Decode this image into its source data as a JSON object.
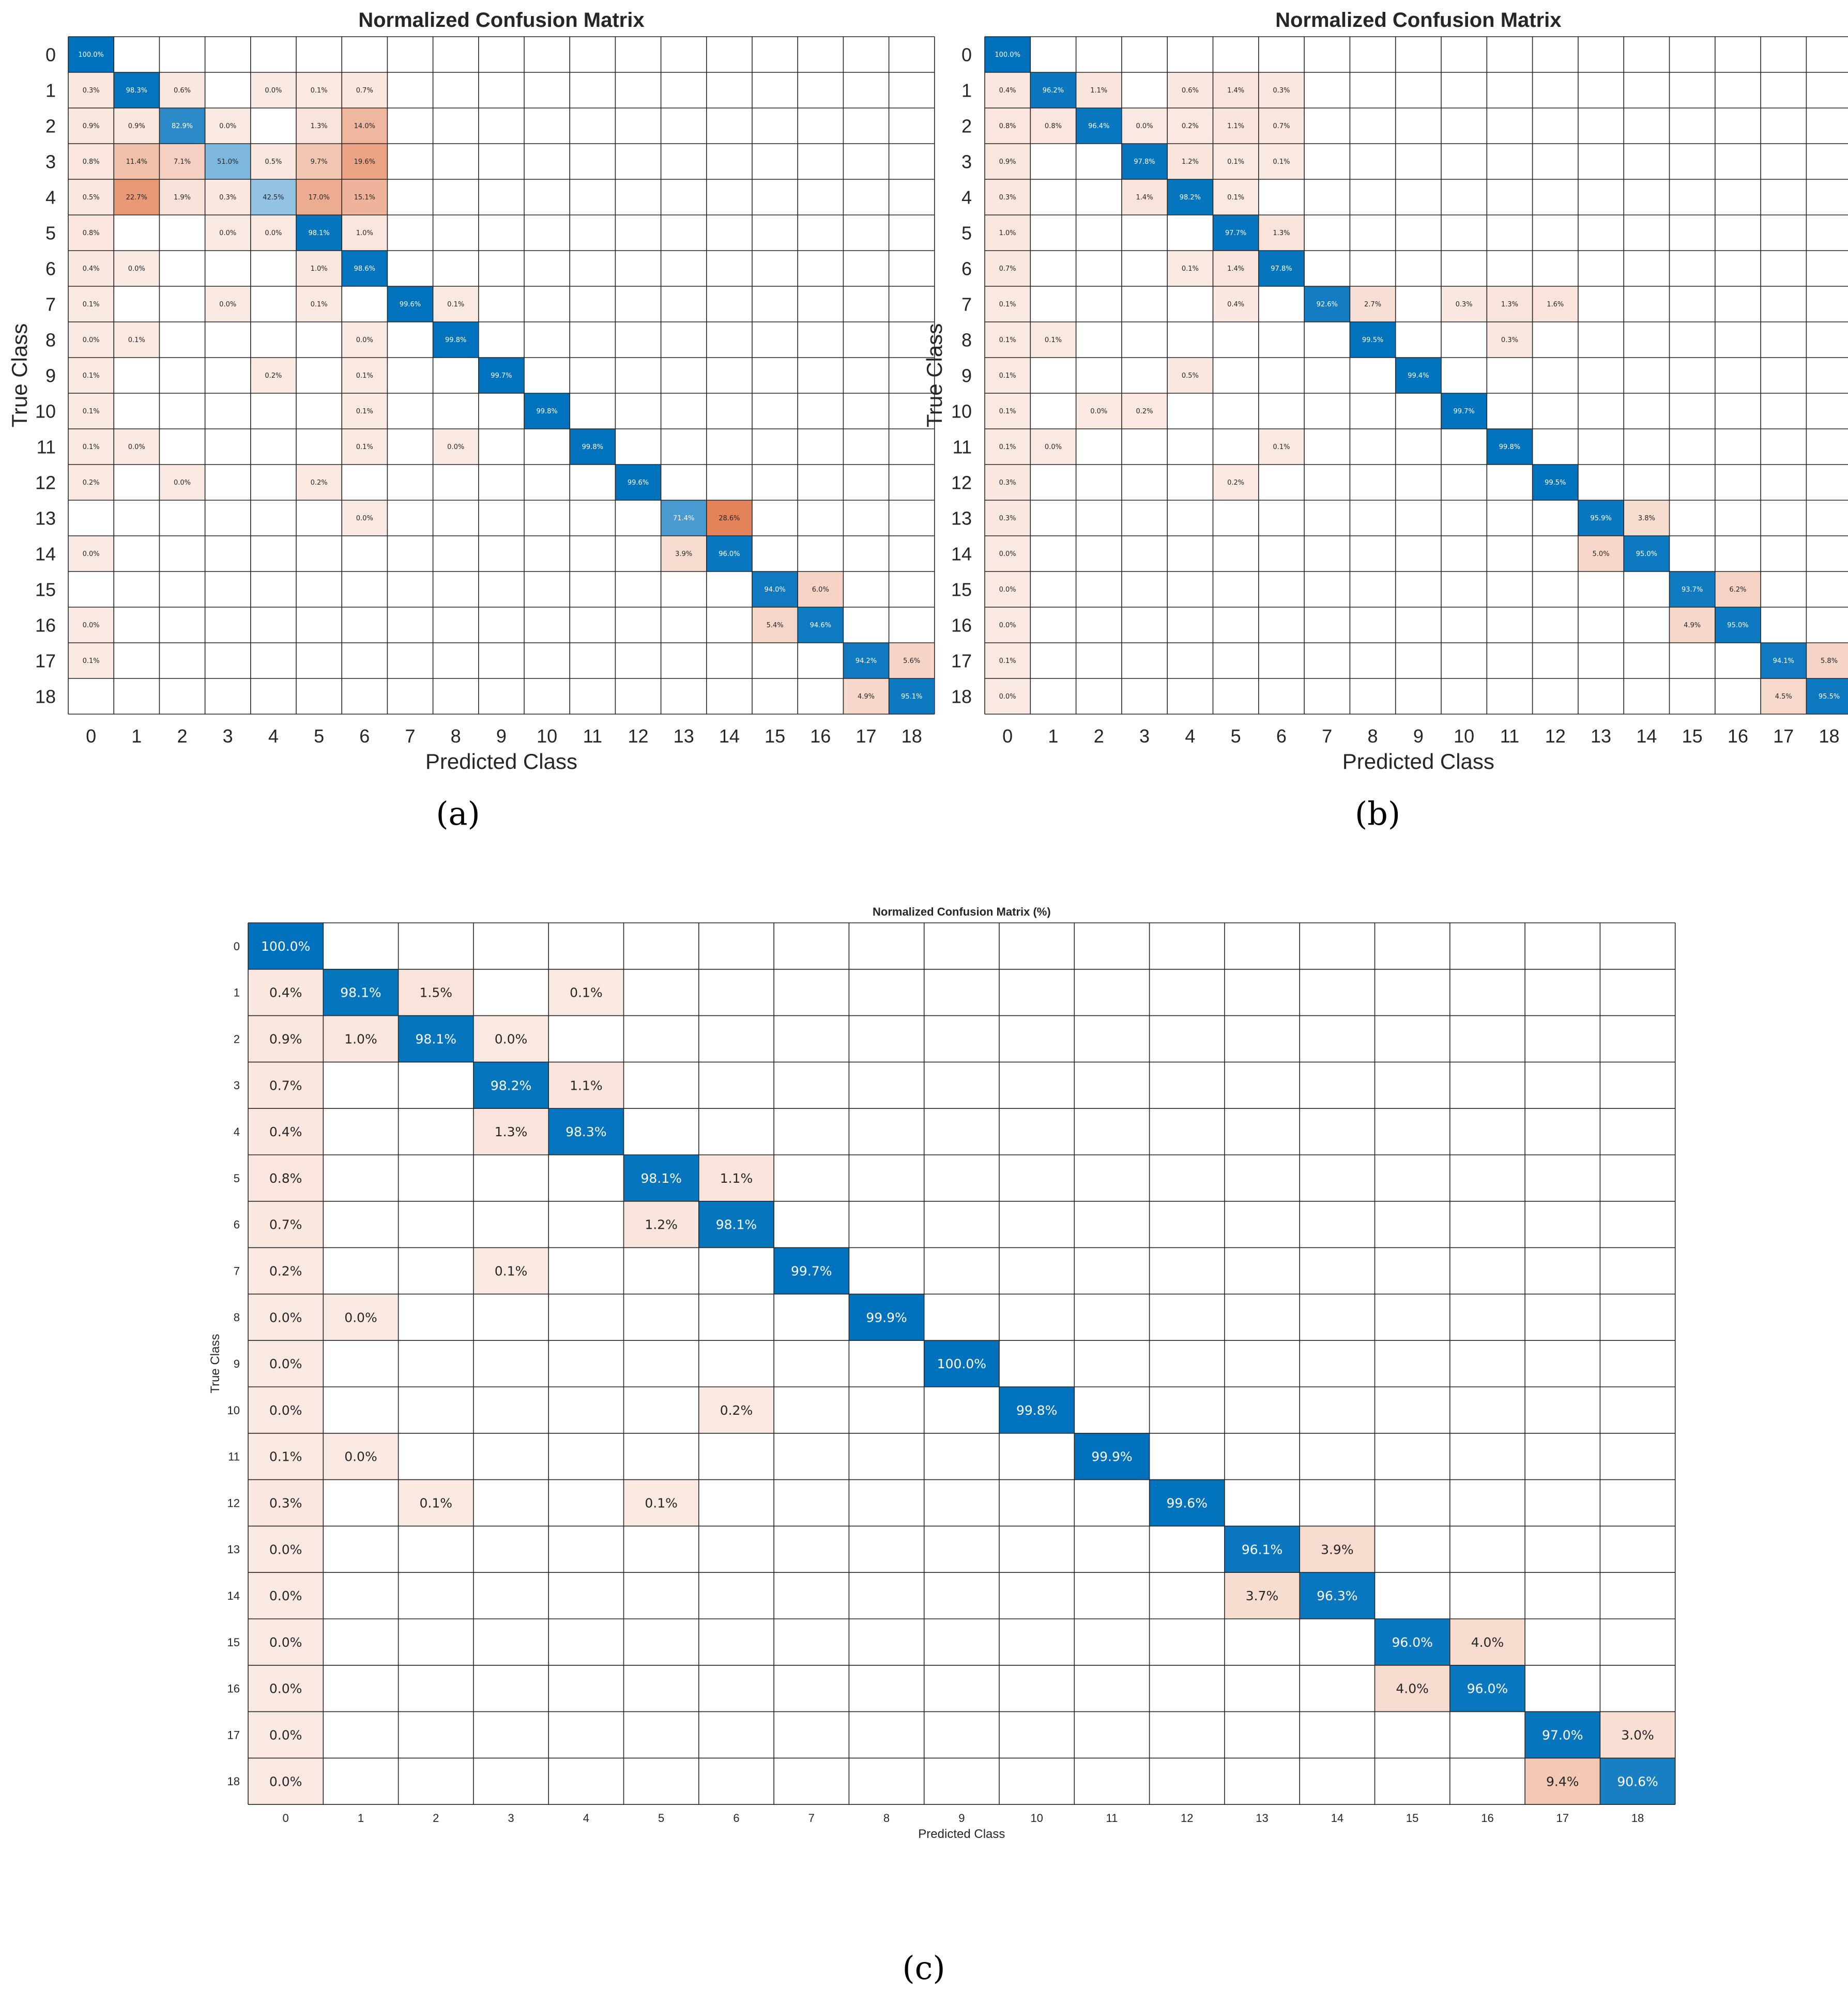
{
  "chart_data": [
    {
      "type": "heatmap",
      "panel": "a",
      "title": "Normalized Confusion Matrix",
      "xlabel": "Predicted Class",
      "ylabel": "True Class",
      "caption": "(a)",
      "classes": [
        "0",
        "1",
        "2",
        "3",
        "4",
        "5",
        "6",
        "7",
        "8",
        "9",
        "10",
        "11",
        "12",
        "13",
        "14",
        "15",
        "16",
        "17",
        "18"
      ],
      "cells": [
        {
          "t": 0,
          "p": 0,
          "v": 100.0
        },
        {
          "t": 1,
          "p": 0,
          "v": 0.3
        },
        {
          "t": 1,
          "p": 1,
          "v": 98.3
        },
        {
          "t": 1,
          "p": 2,
          "v": 0.6
        },
        {
          "t": 1,
          "p": 4,
          "v": 0.0
        },
        {
          "t": 1,
          "p": 5,
          "v": 0.1
        },
        {
          "t": 1,
          "p": 6,
          "v": 0.7
        },
        {
          "t": 2,
          "p": 0,
          "v": 0.9
        },
        {
          "t": 2,
          "p": 1,
          "v": 0.9
        },
        {
          "t": 2,
          "p": 2,
          "v": 82.9
        },
        {
          "t": 2,
          "p": 3,
          "v": 0.0
        },
        {
          "t": 2,
          "p": 5,
          "v": 1.3
        },
        {
          "t": 2,
          "p": 6,
          "v": 14.0
        },
        {
          "t": 3,
          "p": 0,
          "v": 0.8
        },
        {
          "t": 3,
          "p": 1,
          "v": 11.4
        },
        {
          "t": 3,
          "p": 2,
          "v": 7.1
        },
        {
          "t": 3,
          "p": 3,
          "v": 51.0
        },
        {
          "t": 3,
          "p": 4,
          "v": 0.5
        },
        {
          "t": 3,
          "p": 5,
          "v": 9.7
        },
        {
          "t": 3,
          "p": 6,
          "v": 19.6
        },
        {
          "t": 4,
          "p": 0,
          "v": 0.5
        },
        {
          "t": 4,
          "p": 1,
          "v": 22.7
        },
        {
          "t": 4,
          "p": 2,
          "v": 1.9
        },
        {
          "t": 4,
          "p": 3,
          "v": 0.3
        },
        {
          "t": 4,
          "p": 4,
          "v": 42.5
        },
        {
          "t": 4,
          "p": 5,
          "v": 17.0
        },
        {
          "t": 4,
          "p": 6,
          "v": 15.1
        },
        {
          "t": 5,
          "p": 0,
          "v": 0.8
        },
        {
          "t": 5,
          "p": 3,
          "v": 0.0
        },
        {
          "t": 5,
          "p": 4,
          "v": 0.0
        },
        {
          "t": 5,
          "p": 5,
          "v": 98.1
        },
        {
          "t": 5,
          "p": 6,
          "v": 1.0
        },
        {
          "t": 6,
          "p": 0,
          "v": 0.4
        },
        {
          "t": 6,
          "p": 1,
          "v": 0.0
        },
        {
          "t": 6,
          "p": 5,
          "v": 1.0
        },
        {
          "t": 6,
          "p": 6,
          "v": 98.6
        },
        {
          "t": 7,
          "p": 0,
          "v": 0.1
        },
        {
          "t": 7,
          "p": 3,
          "v": 0.0
        },
        {
          "t": 7,
          "p": 5,
          "v": 0.1
        },
        {
          "t": 7,
          "p": 7,
          "v": 99.6
        },
        {
          "t": 7,
          "p": 8,
          "v": 0.1
        },
        {
          "t": 8,
          "p": 0,
          "v": 0.0
        },
        {
          "t": 8,
          "p": 1,
          "v": 0.1
        },
        {
          "t": 8,
          "p": 6,
          "v": 0.0
        },
        {
          "t": 8,
          "p": 8,
          "v": 99.8
        },
        {
          "t": 9,
          "p": 0,
          "v": 0.1
        },
        {
          "t": 9,
          "p": 4,
          "v": 0.2
        },
        {
          "t": 9,
          "p": 6,
          "v": 0.1
        },
        {
          "t": 9,
          "p": 9,
          "v": 99.7
        },
        {
          "t": 10,
          "p": 0,
          "v": 0.1
        },
        {
          "t": 10,
          "p": 6,
          "v": 0.1
        },
        {
          "t": 10,
          "p": 10,
          "v": 99.8
        },
        {
          "t": 11,
          "p": 0,
          "v": 0.1
        },
        {
          "t": 11,
          "p": 1,
          "v": 0.0
        },
        {
          "t": 11,
          "p": 6,
          "v": 0.1
        },
        {
          "t": 11,
          "p": 8,
          "v": 0.0
        },
        {
          "t": 11,
          "p": 11,
          "v": 99.8
        },
        {
          "t": 12,
          "p": 0,
          "v": 0.2
        },
        {
          "t": 12,
          "p": 2,
          "v": 0.0
        },
        {
          "t": 12,
          "p": 5,
          "v": 0.2
        },
        {
          "t": 12,
          "p": 12,
          "v": 99.6
        },
        {
          "t": 13,
          "p": 6,
          "v": 0.0
        },
        {
          "t": 13,
          "p": 13,
          "v": 71.4
        },
        {
          "t": 13,
          "p": 14,
          "v": 28.6
        },
        {
          "t": 14,
          "p": 0,
          "v": 0.0
        },
        {
          "t": 14,
          "p": 13,
          "v": 3.9
        },
        {
          "t": 14,
          "p": 14,
          "v": 96.0
        },
        {
          "t": 15,
          "p": 15,
          "v": 94.0
        },
        {
          "t": 15,
          "p": 16,
          "v": 6.0
        },
        {
          "t": 16,
          "p": 0,
          "v": 0.0
        },
        {
          "t": 16,
          "p": 15,
          "v": 5.4
        },
        {
          "t": 16,
          "p": 16,
          "v": 94.6
        },
        {
          "t": 17,
          "p": 0,
          "v": 0.1
        },
        {
          "t": 17,
          "p": 17,
          "v": 94.2
        },
        {
          "t": 17,
          "p": 18,
          "v": 5.6
        },
        {
          "t": 18,
          "p": 17,
          "v": 4.9
        },
        {
          "t": 18,
          "p": 18,
          "v": 95.1
        }
      ]
    },
    {
      "type": "heatmap",
      "panel": "b",
      "title": "Normalized Confusion Matrix",
      "xlabel": "Predicted Class",
      "ylabel": "True Class",
      "caption": "(b)",
      "classes": [
        "0",
        "1",
        "2",
        "3",
        "4",
        "5",
        "6",
        "7",
        "8",
        "9",
        "10",
        "11",
        "12",
        "13",
        "14",
        "15",
        "16",
        "17",
        "18"
      ],
      "cells": [
        {
          "t": 0,
          "p": 0,
          "v": 100.0
        },
        {
          "t": 1,
          "p": 0,
          "v": 0.4
        },
        {
          "t": 1,
          "p": 1,
          "v": 96.2
        },
        {
          "t": 1,
          "p": 2,
          "v": 1.1
        },
        {
          "t": 1,
          "p": 4,
          "v": 0.6
        },
        {
          "t": 1,
          "p": 5,
          "v": 1.4
        },
        {
          "t": 1,
          "p": 6,
          "v": 0.3
        },
        {
          "t": 2,
          "p": 0,
          "v": 0.8
        },
        {
          "t": 2,
          "p": 1,
          "v": 0.8
        },
        {
          "t": 2,
          "p": 2,
          "v": 96.4
        },
        {
          "t": 2,
          "p": 3,
          "v": 0.0
        },
        {
          "t": 2,
          "p": 4,
          "v": 0.2
        },
        {
          "t": 2,
          "p": 5,
          "v": 1.1
        },
        {
          "t": 2,
          "p": 6,
          "v": 0.7
        },
        {
          "t": 3,
          "p": 0,
          "v": 0.9
        },
        {
          "t": 3,
          "p": 3,
          "v": 97.8
        },
        {
          "t": 3,
          "p": 4,
          "v": 1.2
        },
        {
          "t": 3,
          "p": 5,
          "v": 0.1
        },
        {
          "t": 3,
          "p": 6,
          "v": 0.1
        },
        {
          "t": 4,
          "p": 0,
          "v": 0.3
        },
        {
          "t": 4,
          "p": 3,
          "v": 1.4
        },
        {
          "t": 4,
          "p": 4,
          "v": 98.2
        },
        {
          "t": 4,
          "p": 5,
          "v": 0.1
        },
        {
          "t": 5,
          "p": 0,
          "v": 1.0
        },
        {
          "t": 5,
          "p": 5,
          "v": 97.7
        },
        {
          "t": 5,
          "p": 6,
          "v": 1.3
        },
        {
          "t": 6,
          "p": 0,
          "v": 0.7
        },
        {
          "t": 6,
          "p": 4,
          "v": 0.1
        },
        {
          "t": 6,
          "p": 5,
          "v": 1.4
        },
        {
          "t": 6,
          "p": 6,
          "v": 97.8
        },
        {
          "t": 7,
          "p": 0,
          "v": 0.1
        },
        {
          "t": 7,
          "p": 5,
          "v": 0.4
        },
        {
          "t": 7,
          "p": 7,
          "v": 92.6
        },
        {
          "t": 7,
          "p": 8,
          "v": 2.7
        },
        {
          "t": 7,
          "p": 10,
          "v": 0.3
        },
        {
          "t": 7,
          "p": 11,
          "v": 1.3
        },
        {
          "t": 7,
          "p": 12,
          "v": 1.6
        },
        {
          "t": 8,
          "p": 0,
          "v": 0.1
        },
        {
          "t": 8,
          "p": 1,
          "v": 0.1
        },
        {
          "t": 8,
          "p": 8,
          "v": 99.5
        },
        {
          "t": 8,
          "p": 11,
          "v": 0.3
        },
        {
          "t": 9,
          "p": 0,
          "v": 0.1
        },
        {
          "t": 9,
          "p": 4,
          "v": 0.5
        },
        {
          "t": 9,
          "p": 9,
          "v": 99.4
        },
        {
          "t": 10,
          "p": 0,
          "v": 0.1
        },
        {
          "t": 10,
          "p": 2,
          "v": 0.0
        },
        {
          "t": 10,
          "p": 3,
          "v": 0.2
        },
        {
          "t": 10,
          "p": 10,
          "v": 99.7
        },
        {
          "t": 11,
          "p": 0,
          "v": 0.1
        },
        {
          "t": 11,
          "p": 1,
          "v": 0.0
        },
        {
          "t": 11,
          "p": 6,
          "v": 0.1
        },
        {
          "t": 11,
          "p": 11,
          "v": 99.8
        },
        {
          "t": 12,
          "p": 0,
          "v": 0.3
        },
        {
          "t": 12,
          "p": 5,
          "v": 0.2
        },
        {
          "t": 12,
          "p": 12,
          "v": 99.5
        },
        {
          "t": 13,
          "p": 0,
          "v": 0.3
        },
        {
          "t": 13,
          "p": 13,
          "v": 95.9
        },
        {
          "t": 13,
          "p": 14,
          "v": 3.8
        },
        {
          "t": 14,
          "p": 0,
          "v": 0.0
        },
        {
          "t": 14,
          "p": 13,
          "v": 5.0
        },
        {
          "t": 14,
          "p": 14,
          "v": 95.0
        },
        {
          "t": 15,
          "p": 0,
          "v": 0.0
        },
        {
          "t": 15,
          "p": 15,
          "v": 93.7
        },
        {
          "t": 15,
          "p": 16,
          "v": 6.2
        },
        {
          "t": 16,
          "p": 0,
          "v": 0.0
        },
        {
          "t": 16,
          "p": 15,
          "v": 4.9
        },
        {
          "t": 16,
          "p": 16,
          "v": 95.0
        },
        {
          "t": 17,
          "p": 0,
          "v": 0.1
        },
        {
          "t": 17,
          "p": 17,
          "v": 94.1
        },
        {
          "t": 17,
          "p": 18,
          "v": 5.8
        },
        {
          "t": 18,
          "p": 0,
          "v": 0.0
        },
        {
          "t": 18,
          "p": 17,
          "v": 4.5
        },
        {
          "t": 18,
          "p": 18,
          "v": 95.5
        }
      ]
    },
    {
      "type": "heatmap",
      "panel": "c",
      "title": "Normalized Confusion Matrix (%)",
      "xlabel": "Predicted Class",
      "ylabel": "True Class",
      "caption": "(c)",
      "classes": [
        "0",
        "1",
        "2",
        "3",
        "4",
        "5",
        "6",
        "7",
        "8",
        "9",
        "10",
        "11",
        "12",
        "13",
        "14",
        "15",
        "16",
        "17",
        "18"
      ],
      "cells": [
        {
          "t": 0,
          "p": 0,
          "v": 100.0
        },
        {
          "t": 1,
          "p": 0,
          "v": 0.4
        },
        {
          "t": 1,
          "p": 1,
          "v": 98.1
        },
        {
          "t": 1,
          "p": 2,
          "v": 1.5
        },
        {
          "t": 1,
          "p": 4,
          "v": 0.1
        },
        {
          "t": 2,
          "p": 0,
          "v": 0.9
        },
        {
          "t": 2,
          "p": 1,
          "v": 1.0
        },
        {
          "t": 2,
          "p": 2,
          "v": 98.1
        },
        {
          "t": 2,
          "p": 3,
          "v": 0.0
        },
        {
          "t": 3,
          "p": 0,
          "v": 0.7
        },
        {
          "t": 3,
          "p": 3,
          "v": 98.2
        },
        {
          "t": 3,
          "p": 4,
          "v": 1.1
        },
        {
          "t": 4,
          "p": 0,
          "v": 0.4
        },
        {
          "t": 4,
          "p": 3,
          "v": 1.3
        },
        {
          "t": 4,
          "p": 4,
          "v": 98.3
        },
        {
          "t": 5,
          "p": 0,
          "v": 0.8
        },
        {
          "t": 5,
          "p": 5,
          "v": 98.1
        },
        {
          "t": 5,
          "p": 6,
          "v": 1.1
        },
        {
          "t": 6,
          "p": 0,
          "v": 0.7
        },
        {
          "t": 6,
          "p": 5,
          "v": 1.2
        },
        {
          "t": 6,
          "p": 6,
          "v": 98.1
        },
        {
          "t": 7,
          "p": 0,
          "v": 0.2
        },
        {
          "t": 7,
          "p": 3,
          "v": 0.1
        },
        {
          "t": 7,
          "p": 7,
          "v": 99.7
        },
        {
          "t": 8,
          "p": 0,
          "v": 0.0
        },
        {
          "t": 8,
          "p": 1,
          "v": 0.0
        },
        {
          "t": 8,
          "p": 8,
          "v": 99.9
        },
        {
          "t": 9,
          "p": 0,
          "v": 0.0
        },
        {
          "t": 9,
          "p": 9,
          "v": 100.0
        },
        {
          "t": 10,
          "p": 0,
          "v": 0.0
        },
        {
          "t": 10,
          "p": 6,
          "v": 0.2
        },
        {
          "t": 10,
          "p": 10,
          "v": 99.8
        },
        {
          "t": 11,
          "p": 0,
          "v": 0.1
        },
        {
          "t": 11,
          "p": 1,
          "v": 0.0
        },
        {
          "t": 11,
          "p": 11,
          "v": 99.9
        },
        {
          "t": 12,
          "p": 0,
          "v": 0.3
        },
        {
          "t": 12,
          "p": 2,
          "v": 0.1
        },
        {
          "t": 12,
          "p": 5,
          "v": 0.1
        },
        {
          "t": 12,
          "p": 12,
          "v": 99.6
        },
        {
          "t": 13,
          "p": 0,
          "v": 0.0
        },
        {
          "t": 13,
          "p": 13,
          "v": 96.1
        },
        {
          "t": 13,
          "p": 14,
          "v": 3.9
        },
        {
          "t": 14,
          "p": 0,
          "v": 0.0
        },
        {
          "t": 14,
          "p": 13,
          "v": 3.7
        },
        {
          "t": 14,
          "p": 14,
          "v": 96.3
        },
        {
          "t": 15,
          "p": 0,
          "v": 0.0
        },
        {
          "t": 15,
          "p": 15,
          "v": 96.0
        },
        {
          "t": 15,
          "p": 16,
          "v": 4.0
        },
        {
          "t": 16,
          "p": 0,
          "v": 0.0
        },
        {
          "t": 16,
          "p": 15,
          "v": 4.0
        },
        {
          "t": 16,
          "p": 16,
          "v": 96.0
        },
        {
          "t": 17,
          "p": 0,
          "v": 0.0
        },
        {
          "t": 17,
          "p": 17,
          "v": 97.0
        },
        {
          "t": 17,
          "p": 18,
          "v": 3.0
        },
        {
          "t": 18,
          "p": 0,
          "v": 0.0
        },
        {
          "t": 18,
          "p": 17,
          "v": 9.4
        },
        {
          "t": 18,
          "p": 18,
          "v": 90.6
        }
      ]
    }
  ],
  "colors": {
    "diag_high": "#0072BD",
    "diag_low": "#FFFFFF",
    "off_high": "#D95319",
    "off_low": "#FFFFFF",
    "grid": "#262626",
    "text": "#262626"
  }
}
